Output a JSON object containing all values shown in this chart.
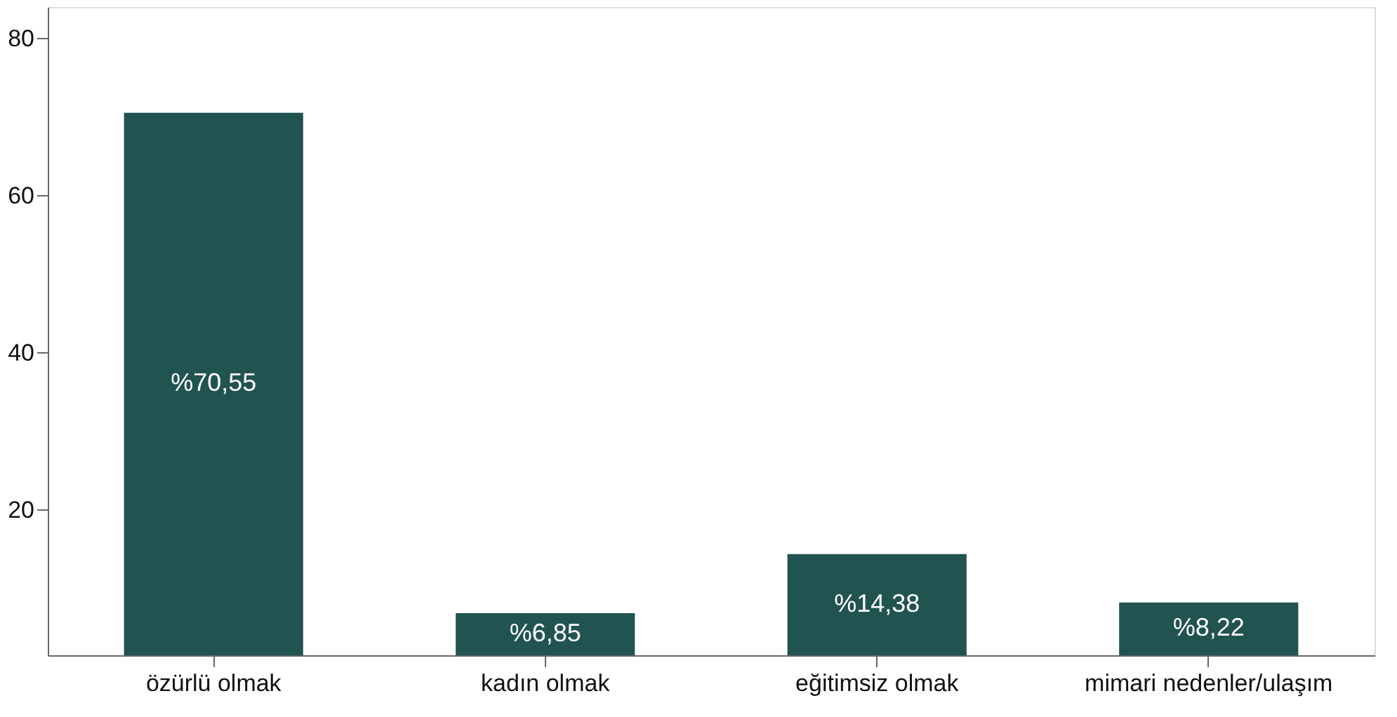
{
  "chart_data": {
    "type": "bar",
    "categories": [
      "özürlü olmak",
      "kadın olmak",
      "eğitimsiz olmak",
      "mimari nedenler/ulaşım"
    ],
    "values": [
      70.55,
      6.85,
      14.38,
      8.22
    ],
    "value_labels": [
      "%70,55",
      "%6,85",
      "%14,38",
      "%8,22"
    ],
    "color": "#215350",
    "ylim": [
      1.5,
      84
    ],
    "yticks": [
      20,
      40,
      60,
      80
    ],
    "grid": false
  }
}
